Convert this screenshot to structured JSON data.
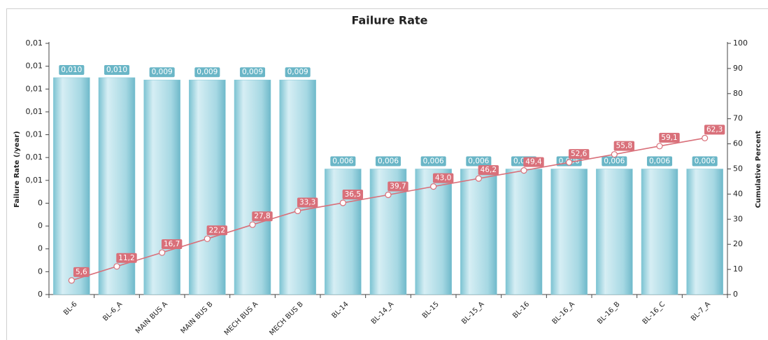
{
  "chart_data": {
    "type": "pareto",
    "title": "Failure Rate",
    "y_label": "Failure Rate (/year)",
    "y2_label": "Cumulative Percent",
    "categories": [
      "BL-6",
      "BL-6_A",
      "MAIN BUS A",
      "MAIN BUS B",
      "MECH BUS A",
      "MECH BUS B",
      "BL-14",
      "BL-14_A",
      "BL-15",
      "BL-15_A",
      "BL-16",
      "BL-16_A",
      "BL-16_B",
      "BL-16_C",
      "BL-7_A"
    ],
    "series": [
      {
        "type": "bar",
        "color": "#86cad8",
        "values": [
          0.0095,
          0.0095,
          0.0094,
          0.0094,
          0.0094,
          0.0094,
          0.0055,
          0.0055,
          0.0055,
          0.0055,
          0.0055,
          0.0055,
          0.0055,
          0.0055,
          0.0055
        ],
        "value_labels": [
          "0,010",
          "0,010",
          "0,009",
          "0,009",
          "0,009",
          "0,009",
          "0,006",
          "0,006",
          "0,006",
          "0,006",
          "0,006",
          "0,006",
          "0,006",
          "0,006",
          "0,006"
        ]
      },
      {
        "type": "line",
        "axis": "y2",
        "color": "#d9707a",
        "values": [
          5.6,
          11.2,
          16.7,
          22.2,
          27.8,
          33.3,
          36.5,
          39.7,
          43.0,
          46.2,
          49.4,
          52.6,
          55.8,
          59.1,
          62.3
        ],
        "value_labels": [
          "5,6",
          "11,2",
          "16,7",
          "22,2",
          "27,8",
          "33,3",
          "36,5",
          "39,7",
          "43,0",
          "46,2",
          "49,4",
          "52,6",
          "55,8",
          "59,1",
          "62,3"
        ]
      }
    ],
    "ylim": [
      0,
      0.011
    ],
    "yticks": [
      {
        "value": 0,
        "label": "0"
      },
      {
        "value": 0.001,
        "label": "0"
      },
      {
        "value": 0.002,
        "label": "0"
      },
      {
        "value": 0.003,
        "label": "0"
      },
      {
        "value": 0.004,
        "label": "0"
      },
      {
        "value": 0.005,
        "label": "0,01"
      },
      {
        "value": 0.006,
        "label": "0,01"
      },
      {
        "value": 0.007,
        "label": "0,01"
      },
      {
        "value": 0.008,
        "label": "0,01"
      },
      {
        "value": 0.009,
        "label": "0,01"
      },
      {
        "value": 0.01,
        "label": "0,01"
      },
      {
        "value": 0.011,
        "label": "0,01"
      }
    ],
    "y2lim": [
      0,
      100
    ],
    "y2ticks": [
      0,
      10,
      20,
      30,
      40,
      50,
      60,
      70,
      80,
      90,
      100
    ]
  }
}
